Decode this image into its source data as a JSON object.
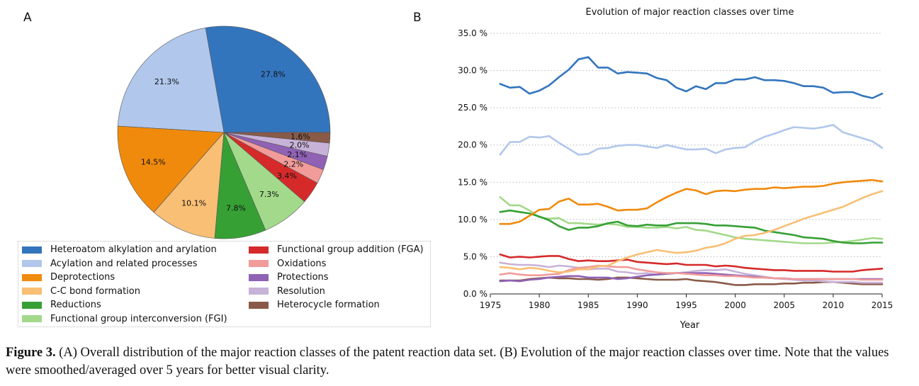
{
  "panel_labels": {
    "a": "A",
    "b": "B"
  },
  "caption": {
    "label": "Figure 3.",
    "text": " (A) Overall distribution of the major reaction classes of the patent reaction data set. (B) Evolution of the major reaction classes over time. Note that the values were smoothed/averaged over 5 years for better visual clarity."
  },
  "legend": [
    {
      "name": "Heteroatom alkylation and arylation",
      "color": "#3375bd"
    },
    {
      "name": "Acylation and related processes",
      "color": "#b1c7ec"
    },
    {
      "name": "Deprotections",
      "color": "#f08a0c"
    },
    {
      "name": "C-C bond formation",
      "color": "#f8bf75"
    },
    {
      "name": "Reductions",
      "color": "#36a035"
    },
    {
      "name": "Functional group interconversion (FGI)",
      "color": "#a3d98a"
    },
    {
      "name": "Functional group addition (FGA)",
      "color": "#d62a2a"
    },
    {
      "name": "Oxidations",
      "color": "#f19c9a"
    },
    {
      "name": "Protections",
      "color": "#8f62b5"
    },
    {
      "name": "Resolution",
      "color": "#c7b2d8"
    },
    {
      "name": "Heterocycle formation",
      "color": "#8a5a48"
    }
  ],
  "chart_data": [
    {
      "type": "pie",
      "labels": [
        "Heteroatom alkylation and arylation",
        "Acylation and related processes",
        "Deprotections",
        "C-C bond formation",
        "Reductions",
        "Functional group interconversion (FGI)",
        "Functional group addition (FGA)",
        "Oxidations",
        "Protections",
        "Resolution",
        "Heterocycle formation"
      ],
      "values": [
        27.8,
        21.3,
        14.5,
        10.1,
        7.8,
        7.3,
        3.4,
        2.2,
        2.1,
        2.0,
        1.6
      ],
      "value_labels": [
        "27.8%",
        "21.3%",
        "14.5%",
        "10.1%",
        "7.8%",
        "7.3%",
        "3.4%",
        "2.2%",
        "2.1%",
        "2.0%",
        "1.6%"
      ],
      "start": "east",
      "direction": "counterclockwise"
    },
    {
      "type": "line",
      "title": "Evolution of major reaction classes over time",
      "xlabel": "Year",
      "ylabel": "",
      "xlim": [
        1975,
        2015
      ],
      "ylim": [
        0,
        35
      ],
      "xticks": [
        "1975",
        "1980",
        "1985",
        "1990",
        "1995",
        "2000",
        "2005",
        "2010",
        "2015"
      ],
      "yticks": [
        "0.0 %",
        "5.0 %",
        "10.0 %",
        "15.0 %",
        "20.0 %",
        "25.0 %",
        "30.0 %",
        "35.0 %"
      ],
      "grid": "y dotted",
      "x": [
        1976,
        1977,
        1978,
        1979,
        1980,
        1981,
        1982,
        1983,
        1984,
        1985,
        1986,
        1987,
        1988,
        1989,
        1990,
        1991,
        1992,
        1993,
        1994,
        1995,
        1996,
        1997,
        1998,
        1999,
        2000,
        2001,
        2002,
        2003,
        2004,
        2005,
        2006,
        2007,
        2008,
        2009,
        2010,
        2011,
        2012,
        2013,
        2014,
        2015
      ],
      "series": [
        {
          "name": "Heteroatom alkylation and arylation",
          "values": [
            28.2,
            27.7,
            27.8,
            26.9,
            27.3,
            28.0,
            29.1,
            30.1,
            31.5,
            31.8,
            30.4,
            30.4,
            29.6,
            29.8,
            29.7,
            29.6,
            29.0,
            28.7,
            27.7,
            27.2,
            27.9,
            27.5,
            28.3,
            28.3,
            28.8,
            28.8,
            29.1,
            28.7,
            28.7,
            28.6,
            28.3,
            27.9,
            27.9,
            27.7,
            27.0,
            27.1,
            27.1,
            26.6,
            26.3,
            26.9
          ]
        },
        {
          "name": "Acylation and related processes",
          "values": [
            18.7,
            20.4,
            20.4,
            21.1,
            21.0,
            21.2,
            20.3,
            19.5,
            18.7,
            18.8,
            19.5,
            19.6,
            19.9,
            20.0,
            20.0,
            19.8,
            19.6,
            20.0,
            19.7,
            19.4,
            19.4,
            19.5,
            18.9,
            19.4,
            19.6,
            19.7,
            20.5,
            21.1,
            21.5,
            22.0,
            22.4,
            22.3,
            22.2,
            22.4,
            22.7,
            21.7,
            21.3,
            20.9,
            20.5,
            19.6
          ]
        },
        {
          "name": "Deprotections",
          "values": [
            9.4,
            9.4,
            9.7,
            10.5,
            11.3,
            11.4,
            12.4,
            12.8,
            12.0,
            12.0,
            12.1,
            11.7,
            11.2,
            11.3,
            11.3,
            11.5,
            12.3,
            13.0,
            13.6,
            14.1,
            13.9,
            13.4,
            13.8,
            13.9,
            13.8,
            14.0,
            14.1,
            14.1,
            14.3,
            14.2,
            14.3,
            14.4,
            14.4,
            14.5,
            14.8,
            15.0,
            15.1,
            15.2,
            15.3,
            15.1
          ]
        },
        {
          "name": "C-C bond formation",
          "values": [
            3.6,
            3.5,
            3.3,
            3.5,
            3.4,
            3.1,
            2.9,
            3.0,
            3.3,
            3.3,
            3.7,
            3.8,
            4.4,
            4.9,
            5.3,
            5.6,
            5.9,
            5.7,
            5.5,
            5.6,
            5.8,
            6.2,
            6.4,
            6.8,
            7.4,
            7.8,
            7.9,
            8.2,
            8.6,
            9.1,
            9.6,
            10.1,
            10.5,
            10.9,
            11.3,
            11.7,
            12.3,
            12.9,
            13.4,
            13.8
          ]
        },
        {
          "name": "Reductions",
          "values": [
            11.0,
            11.2,
            11.0,
            10.8,
            10.4,
            9.9,
            9.1,
            8.6,
            8.9,
            8.9,
            9.1,
            9.5,
            9.7,
            9.2,
            9.1,
            9.3,
            9.2,
            9.2,
            9.5,
            9.5,
            9.5,
            9.4,
            9.2,
            9.2,
            9.1,
            9.0,
            8.9,
            8.5,
            8.3,
            8.1,
            7.9,
            7.6,
            7.5,
            7.4,
            7.1,
            6.9,
            6.8,
            6.8,
            6.9,
            6.9
          ]
        },
        {
          "name": "Functional group interconversion (FGI)",
          "values": [
            13.0,
            11.9,
            11.9,
            11.2,
            10.3,
            10.1,
            10.2,
            9.5,
            9.5,
            9.4,
            9.3,
            9.4,
            9.3,
            9.0,
            9.0,
            8.9,
            8.9,
            9.0,
            8.8,
            9.0,
            8.6,
            8.5,
            8.2,
            7.9,
            7.6,
            7.4,
            7.3,
            7.2,
            7.1,
            7.0,
            6.9,
            6.8,
            6.8,
            6.8,
            6.9,
            7.0,
            7.1,
            7.3,
            7.5,
            7.4
          ]
        },
        {
          "name": "Functional group addition (FGA)",
          "values": [
            5.3,
            4.9,
            5.0,
            4.9,
            5.0,
            5.1,
            5.1,
            4.7,
            4.4,
            4.5,
            4.4,
            4.4,
            4.5,
            4.6,
            4.3,
            4.2,
            4.1,
            4.0,
            4.1,
            3.9,
            3.9,
            3.9,
            3.7,
            3.8,
            3.7,
            3.5,
            3.4,
            3.3,
            3.2,
            3.2,
            3.1,
            3.1,
            3.1,
            3.1,
            3.0,
            3.0,
            3.0,
            3.2,
            3.3,
            3.4
          ]
        },
        {
          "name": "Oxidations",
          "values": [
            2.6,
            2.8,
            2.6,
            2.5,
            2.5,
            2.6,
            2.7,
            3.2,
            3.5,
            3.6,
            3.8,
            3.7,
            3.6,
            3.6,
            3.3,
            3.1,
            2.9,
            2.8,
            2.8,
            2.7,
            2.6,
            2.5,
            2.5,
            2.4,
            2.4,
            2.3,
            2.2,
            2.2,
            2.1,
            2.1,
            2.0,
            2.0,
            2.0,
            2.0,
            2.0,
            2.0,
            2.0,
            1.9,
            1.9,
            1.9
          ]
        },
        {
          "name": "Protections",
          "values": [
            1.7,
            1.8,
            1.7,
            1.9,
            2.0,
            2.2,
            2.3,
            2.4,
            2.4,
            2.2,
            2.2,
            2.2,
            2.0,
            2.1,
            2.3,
            2.5,
            2.6,
            2.7,
            2.8,
            2.8,
            2.8,
            2.8,
            2.7,
            2.6,
            2.5,
            2.4,
            2.3,
            2.2,
            2.1,
            2.1,
            2.0,
            2.0,
            2.0,
            2.0,
            2.0,
            2.0,
            2.0,
            2.0,
            2.0,
            2.0
          ]
        },
        {
          "name": "Resolution",
          "values": [
            4.2,
            4.0,
            3.9,
            3.9,
            3.8,
            3.6,
            3.8,
            3.7,
            3.5,
            3.3,
            3.4,
            3.4,
            3.0,
            2.9,
            2.7,
            2.8,
            2.6,
            2.7,
            2.8,
            2.9,
            3.1,
            3.2,
            3.2,
            3.3,
            3.0,
            2.7,
            2.5,
            2.3,
            2.1,
            2.0,
            1.9,
            1.8,
            1.8,
            1.7,
            1.6,
            1.6,
            1.6,
            1.5,
            1.5,
            1.5
          ]
        },
        {
          "name": "Heterocycle formation",
          "values": [
            1.8,
            1.8,
            1.8,
            2.0,
            2.1,
            2.2,
            2.1,
            2.1,
            2.0,
            2.0,
            1.9,
            2.0,
            2.2,
            2.2,
            2.1,
            2.0,
            1.9,
            1.9,
            1.9,
            2.0,
            1.8,
            1.7,
            1.6,
            1.4,
            1.2,
            1.2,
            1.3,
            1.3,
            1.3,
            1.4,
            1.4,
            1.5,
            1.5,
            1.6,
            1.6,
            1.5,
            1.4,
            1.3,
            1.3,
            1.3
          ]
        }
      ]
    }
  ]
}
